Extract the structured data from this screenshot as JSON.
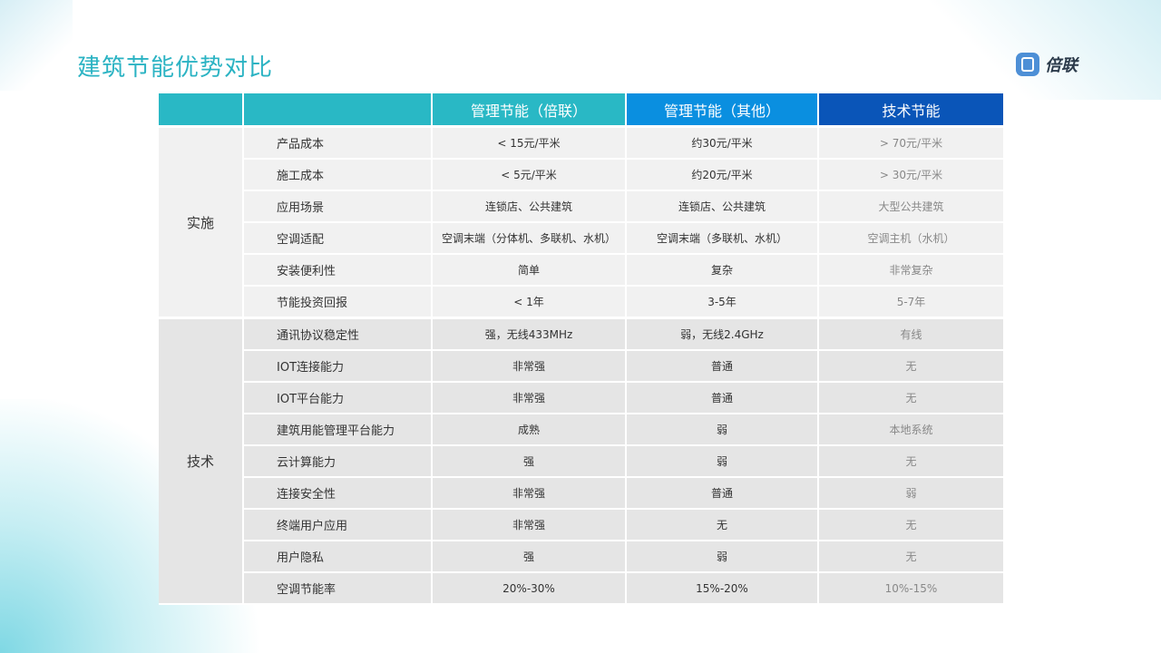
{
  "title": "建筑节能优势对比",
  "logo": {
    "text": "倍联"
  },
  "colors": {
    "accent": "#2bb3c3",
    "header_mgmt_beilian": "#29b8c5",
    "header_mgmt_other": "#0a8fe0",
    "header_tech": "#0a55b8"
  },
  "table": {
    "headers": [
      "",
      "",
      "管理节能（倍联）",
      "管理节能（其他）",
      "技术节能"
    ],
    "groups": [
      {
        "name": "实施",
        "rows": [
          [
            "产品成本",
            "< 15元/平米",
            "约30元/平米",
            "> 70元/平米"
          ],
          [
            "施工成本",
            "< 5元/平米",
            "约20元/平米",
            "> 30元/平米"
          ],
          [
            "应用场景",
            "连锁店、公共建筑",
            "连锁店、公共建筑",
            "大型公共建筑"
          ],
          [
            "空调适配",
            "空调末端（分体机、多联机、水机）",
            "空调末端（多联机、水机）",
            "空调主机（水机）"
          ],
          [
            "安装便利性",
            "简单",
            "复杂",
            "非常复杂"
          ],
          [
            "节能投资回报",
            "< 1年",
            "3-5年",
            "5-7年"
          ]
        ]
      },
      {
        "name": "技术",
        "rows": [
          [
            "通讯协议稳定性",
            "强，无线433MHz",
            "弱，无线2.4GHz",
            "有线"
          ],
          [
            "IOT连接能力",
            "非常强",
            "普通",
            "无"
          ],
          [
            "IOT平台能力",
            "非常强",
            "普通",
            "无"
          ],
          [
            "建筑用能管理平台能力",
            "成熟",
            "弱",
            "本地系统"
          ],
          [
            "云计算能力",
            "强",
            "弱",
            "无"
          ],
          [
            "连接安全性",
            "非常强",
            "普通",
            "弱"
          ],
          [
            "终端用户应用",
            "非常强",
            "无",
            "无"
          ],
          [
            "用户隐私",
            "强",
            "弱",
            "无"
          ],
          [
            "空调节能率",
            "20%-30%",
            "15%-20%",
            "10%-15%"
          ]
        ]
      }
    ]
  }
}
